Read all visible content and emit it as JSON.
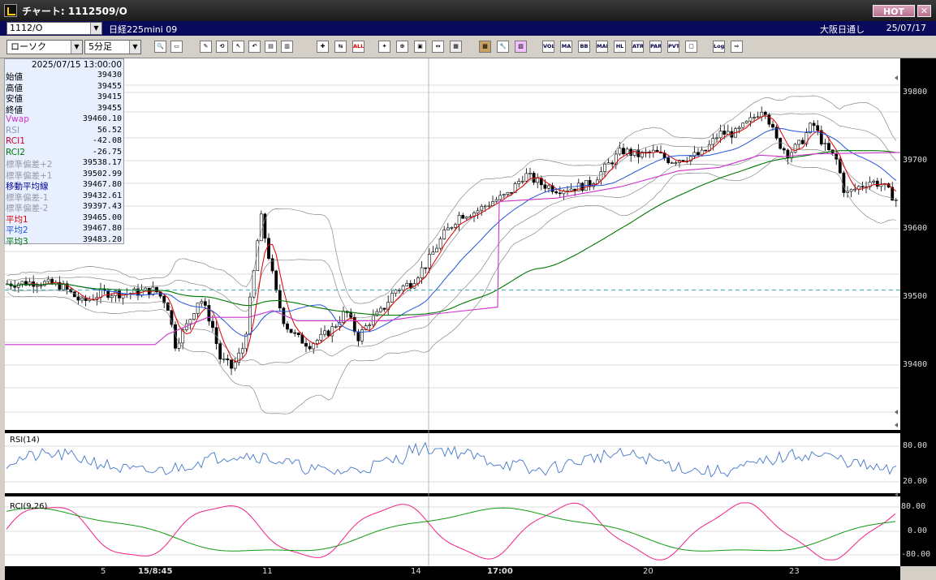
{
  "window": {
    "title": "チャート: 1112509/O",
    "hot_label": "HOT",
    "close_label": "✕"
  },
  "symbol": {
    "code": "1112/O",
    "name": "日経225mini 09",
    "market": "大阪日通し",
    "date": "25/07/17"
  },
  "toolbar": {
    "chart_type": "ローソク",
    "interval": "5分足",
    "buttons": [
      "zoom",
      "window",
      "line",
      "measure",
      "select",
      "undo",
      "memo",
      "trash",
      "cross",
      "split",
      "ALL",
      "mark",
      "zoom-in",
      "frame",
      "extend",
      "note",
      "style",
      "wrench",
      "palette",
      "VOL",
      "MA",
      "BB",
      "MAE",
      "HL",
      "ATR",
      "PAR",
      "PVT",
      "box",
      "Log",
      "export"
    ],
    "text_buttons": {
      "all": "ALL",
      "vol": "VOL",
      "ma": "MA",
      "bb": "BB",
      "mae": "MAE",
      "hl": "HL",
      "atr": "ATR",
      "par": "PAR",
      "pvt": "PVT",
      "log": "Log"
    }
  },
  "info": {
    "datetime": "2025/07/15 13:00:00",
    "rows": [
      {
        "label": "始値",
        "value": "39430",
        "color": "#000000"
      },
      {
        "label": "高値",
        "value": "39455",
        "color": "#000000"
      },
      {
        "label": "安値",
        "value": "39415",
        "color": "#000000"
      },
      {
        "label": "終値",
        "value": "39455",
        "color": "#000000"
      },
      {
        "label": "Vwap",
        "value": "39460.10",
        "color": "#cc33cc"
      },
      {
        "label": "RSI",
        "value": "56.52",
        "color": "#8899bb"
      },
      {
        "label": "RCI1",
        "value": "-42.08",
        "color": "#cc0033"
      },
      {
        "label": "RCI2",
        "value": "-26.75",
        "color": "#007700"
      },
      {
        "label": "標準偏差+2",
        "value": "39538.17",
        "color": "#9999aa"
      },
      {
        "label": "標準偏差+1",
        "value": "39502.99",
        "color": "#9999aa"
      },
      {
        "label": "移動平均線",
        "value": "39467.80",
        "color": "#000099"
      },
      {
        "label": "標準偏差-1",
        "value": "39432.61",
        "color": "#9999aa"
      },
      {
        "label": "標準偏差-2",
        "value": "39397.43",
        "color": "#9999aa"
      },
      {
        "label": "平均1",
        "value": "39465.00",
        "color": "#dd0000"
      },
      {
        "label": "平均2",
        "value": "39467.80",
        "color": "#2255dd"
      },
      {
        "label": "平均3",
        "value": "39483.20",
        "color": "#007700"
      }
    ]
  },
  "price_axis": {
    "labels": [
      "39800",
      "39700",
      "39600",
      "39500",
      "39400"
    ]
  },
  "rsi_panel": {
    "label": "RSI(14)",
    "axis": [
      "80.00",
      "20.00"
    ]
  },
  "rci_panel": {
    "label": "RCI(9,26)",
    "axis": [
      "80.00",
      "0.00",
      "-80.00"
    ]
  },
  "time_axis": {
    "labels": [
      "5",
      "15/8:45",
      "11",
      "14",
      "17:00",
      "20",
      "23"
    ]
  },
  "colors": {
    "up": "#ffffff",
    "down": "#000000",
    "bb": "#888888",
    "ma1": "#dd0000",
    "ma2": "#2255dd",
    "ma3": "#007700",
    "vwap": "#cc33cc",
    "rsi": "#4477cc",
    "rci1": "#ee2288",
    "rci2": "#119911",
    "hline": "#33aaaa"
  }
}
